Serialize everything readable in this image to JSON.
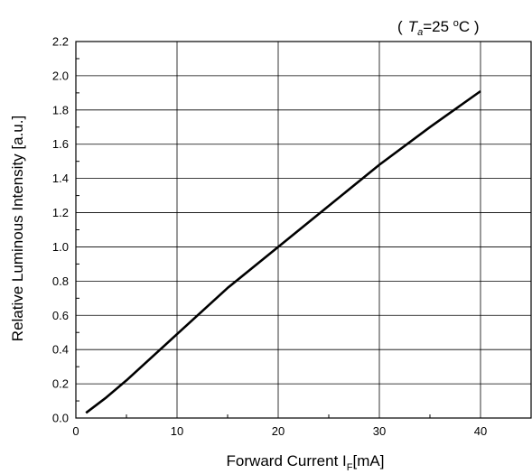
{
  "chart_data": {
    "type": "line",
    "title": "",
    "xlabel": "Forward Current I",
    "xlabel_sub": "F",
    "xlabel_suffix": "[mA]",
    "ylabel": "Relative Luminous Intensity [a.u.]",
    "condition": {
      "open": "(",
      "symbol": "T",
      "subscript": "a",
      "value": "=25 ",
      "degree": "o",
      "unit": "C )"
    },
    "xlim": [
      0,
      45
    ],
    "ylim": [
      0,
      2.2
    ],
    "x_ticks": [
      "0",
      "10",
      "20",
      "30",
      "40"
    ],
    "x_tick_values": [
      0,
      10,
      20,
      30,
      40
    ],
    "y_ticks": [
      "0.0",
      "0.2",
      "0.4",
      "0.6",
      "0.8",
      "1.0",
      "1.2",
      "1.4",
      "1.6",
      "1.8",
      "2.0",
      "2.2"
    ],
    "y_tick_values": [
      0,
      0.2,
      0.4,
      0.6,
      0.8,
      1.0,
      1.2,
      1.4,
      1.6,
      1.8,
      2.0,
      2.2
    ],
    "grid": true,
    "series": [
      {
        "x": [
          1,
          3,
          5,
          10,
          15,
          20,
          25,
          30,
          35,
          40
        ],
        "y": [
          0.03,
          0.12,
          0.22,
          0.49,
          0.76,
          1.0,
          1.24,
          1.48,
          1.7,
          1.91
        ],
        "color": "#000000"
      }
    ]
  }
}
